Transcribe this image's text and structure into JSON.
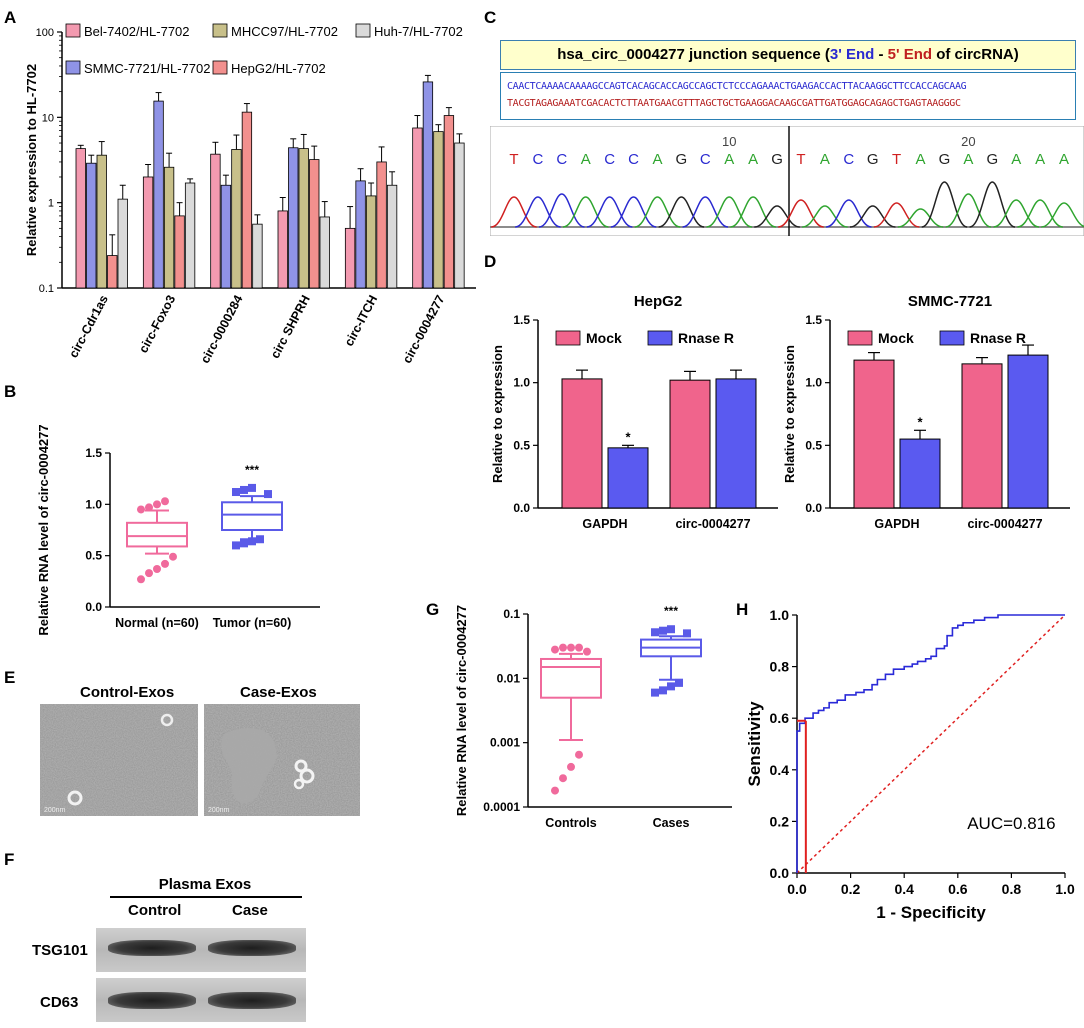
{
  "panel_letters": [
    "A",
    "B",
    "C",
    "D",
    "E",
    "F",
    "G",
    "H"
  ],
  "chart_data": [
    {
      "id": "A",
      "type": "bar",
      "ylabel": "Relative expression to HL-7702",
      "yscale": "log",
      "ylim": [
        0.1,
        100
      ],
      "yticks": [
        "0.1",
        "1",
        "10",
        "100"
      ],
      "categories": [
        "circ-Cdr1as",
        "circ-Foxo3",
        "circ-0000284",
        "circ SHPRH",
        "circ-ITCH",
        "circ-0004277"
      ],
      "series": [
        {
          "name": "Bel-7402/HL-7702",
          "color": "#f39ab0",
          "values": [
            4.3,
            2.0,
            3.7,
            0.8,
            0.5,
            7.5
          ],
          "errors": [
            0.4,
            0.8,
            1.4,
            0.35,
            0.4,
            3.0
          ]
        },
        {
          "name": "SMMC-7721/HL-7702",
          "color": "#8f93e6",
          "values": [
            2.9,
            15.5,
            1.6,
            4.4,
            1.8,
            26.0
          ],
          "errors": [
            0.7,
            4.0,
            0.5,
            1.2,
            0.7,
            5.0
          ]
        },
        {
          "name": "MHCC97/HL-7702",
          "color": "#c8c08a",
          "values": [
            3.6,
            2.6,
            4.2,
            4.3,
            1.2,
            6.8
          ],
          "errors": [
            1.6,
            1.2,
            2.0,
            2.0,
            0.5,
            1.4
          ]
        },
        {
          "name": "HepG2/HL-7702",
          "color": "#f2908e",
          "values": [
            0.24,
            0.7,
            11.5,
            3.2,
            3.0,
            10.5
          ],
          "errors": [
            0.18,
            0.3,
            3.0,
            1.4,
            1.5,
            2.5
          ]
        },
        {
          "name": "Huh-7/HL-7702",
          "color": "#dadada",
          "values": [
            1.1,
            1.7,
            0.56,
            0.68,
            1.6,
            5.0
          ],
          "errors": [
            0.5,
            0.2,
            0.16,
            0.35,
            0.7,
            1.4
          ]
        }
      ]
    },
    {
      "id": "B",
      "type": "box",
      "ylabel": "Relative RNA level of circ-0004277",
      "ylim": [
        0,
        1.5
      ],
      "yticks": [
        "0.0",
        "0.5",
        "1.0",
        "1.5"
      ],
      "significance": "***",
      "groups": [
        {
          "name": "Normal (n=60)",
          "color": "#f06a9c",
          "min": 0.52,
          "q1": 0.59,
          "median": 0.69,
          "q3": 0.82,
          "max": 0.94,
          "outliers": [
            0.27,
            0.33,
            0.37,
            0.42,
            0.49,
            0.95,
            0.97,
            1.0,
            1.03
          ]
        },
        {
          "name": "Tumor (n=60)",
          "color": "#5a5ae8",
          "min": 0.66,
          "q1": 0.75,
          "median": 0.9,
          "q3": 1.02,
          "max": 1.08,
          "outliers": [
            0.6,
            0.62,
            0.64,
            0.66,
            1.1,
            1.12,
            1.14,
            1.16
          ]
        }
      ]
    },
    {
      "id": "D1",
      "type": "bar",
      "title": "HepG2",
      "ylabel": "Relative to expression",
      "ylim": [
        0,
        1.5
      ],
      "yticks": [
        "0.0",
        "0.5",
        "1.0",
        "1.5"
      ],
      "categories": [
        "GAPDH",
        "circ-0004277"
      ],
      "series": [
        {
          "name": "Mock",
          "color": "#f0648c",
          "values": [
            1.03,
            1.02
          ],
          "errors": [
            0.07,
            0.07
          ]
        },
        {
          "name": "Rnase R",
          "color": "#5a5af0",
          "values": [
            0.48,
            1.03
          ],
          "errors": [
            0.02,
            0.07
          ]
        }
      ],
      "annotation": "*"
    },
    {
      "id": "D2",
      "type": "bar",
      "title": "SMMC-7721",
      "ylabel": "Relative to expression",
      "ylim": [
        0,
        1.5
      ],
      "yticks": [
        "0.0",
        "0.5",
        "1.0",
        "1.5"
      ],
      "categories": [
        "GAPDH",
        "circ-0004277"
      ],
      "series": [
        {
          "name": "Mock",
          "color": "#f0648c",
          "values": [
            1.18,
            1.15
          ],
          "errors": [
            0.06,
            0.05
          ]
        },
        {
          "name": "Rnase R",
          "color": "#5a5af0",
          "values": [
            0.55,
            1.22
          ],
          "errors": [
            0.07,
            0.08
          ]
        }
      ],
      "annotation": "*"
    },
    {
      "id": "G",
      "type": "box",
      "yscale": "log",
      "ylabel": "Relative RNA level of circ-0004277",
      "ylim": [
        0.0001,
        0.1
      ],
      "yticks": [
        "0.0001",
        "0.001",
        "0.01",
        "0.1"
      ],
      "significance": "***",
      "groups": [
        {
          "name": "Controls",
          "color": "#f06a9c",
          "min": 0.0011,
          "q1": 0.005,
          "median": 0.015,
          "q3": 0.02,
          "max": 0.024,
          "outliers": [
            0.00018,
            0.00028,
            0.00042,
            0.00065,
            0.026,
            0.028,
            0.03,
            0.03,
            0.03
          ]
        },
        {
          "name": "Cases",
          "color": "#5a5ae8",
          "min": 0.0095,
          "q1": 0.022,
          "median": 0.03,
          "q3": 0.04,
          "max": 0.045,
          "outliers": [
            0.006,
            0.0065,
            0.0075,
            0.0085,
            0.05,
            0.052,
            0.055,
            0.058
          ]
        }
      ]
    },
    {
      "id": "H",
      "type": "line",
      "xlabel": "1 - Specificity",
      "ylabel": "Sensitivity",
      "xlim": [
        0,
        1
      ],
      "ylim": [
        0,
        1
      ],
      "xticks": [
        "0.0",
        "0.2",
        "0.4",
        "0.6",
        "0.8",
        "1.0"
      ],
      "yticks": [
        "0.0",
        "0.2",
        "0.4",
        "0.6",
        "0.8",
        "1.0"
      ],
      "annotation": "AUC=0.816",
      "roc_x": [
        0,
        0,
        0.01,
        0.01,
        0.03,
        0.03,
        0.06,
        0.08,
        0.1,
        0.12,
        0.15,
        0.18,
        0.22,
        0.25,
        0.28,
        0.3,
        0.33,
        0.36,
        0.4,
        0.43,
        0.45,
        0.48,
        0.5,
        0.52,
        0.55,
        0.56,
        0.58,
        0.6,
        0.62,
        0.66,
        0.7,
        0.75,
        0.8,
        0.9,
        1.0
      ],
      "roc_y": [
        0,
        0.55,
        0.57,
        0.58,
        0.59,
        0.6,
        0.62,
        0.63,
        0.64,
        0.66,
        0.67,
        0.69,
        0.7,
        0.71,
        0.73,
        0.75,
        0.77,
        0.79,
        0.8,
        0.81,
        0.82,
        0.83,
        0.84,
        0.87,
        0.88,
        0.92,
        0.95,
        0.96,
        0.97,
        0.98,
        0.99,
        1.0,
        1.0,
        1.0,
        1.0
      ],
      "cutoff_x": 0.033,
      "cutoff_y": 0.59,
      "reference_line": "diagonal"
    }
  ],
  "panel_c": {
    "title_main": "hsa_circ_0004277 junction sequence (",
    "title_3end": "3' End",
    "title_dash": " - ",
    "title_5end": "5' End",
    "title_tail": " of circRNA)",
    "seq_line1": "CAACTCAAAACAAAAGCCAGTCACAGCACCAGCCAGCTCTCCCAGAAACTGAAGACCACTTACAAGGCTTCCACCAGCAAG",
    "seq_line2": "TACGTAGAGAAATCGACACTCTTAATGAACGTTTAGCTGCTGAAGGACAAGCGATTGATGGAGCAGAGCTGAGTAAGGGC",
    "tick10": "10",
    "tick20": "20",
    "bases": [
      "T",
      "C",
      "C",
      "A",
      "C",
      "C",
      "A",
      "G",
      "C",
      "A",
      "A",
      "G",
      "T",
      "A",
      "C",
      "G",
      "T",
      "A",
      "G",
      "A",
      "G",
      "A",
      "A",
      "A"
    ]
  },
  "panel_e": {
    "left_label": "Control-Exos",
    "right_label": "Case-Exos",
    "scale_left": "200nm",
    "scale_right": "200nm"
  },
  "panel_f": {
    "title": "Plasma Exos",
    "lanes": [
      "Control",
      "Case"
    ],
    "rows": [
      "TSG101",
      "CD63"
    ]
  }
}
